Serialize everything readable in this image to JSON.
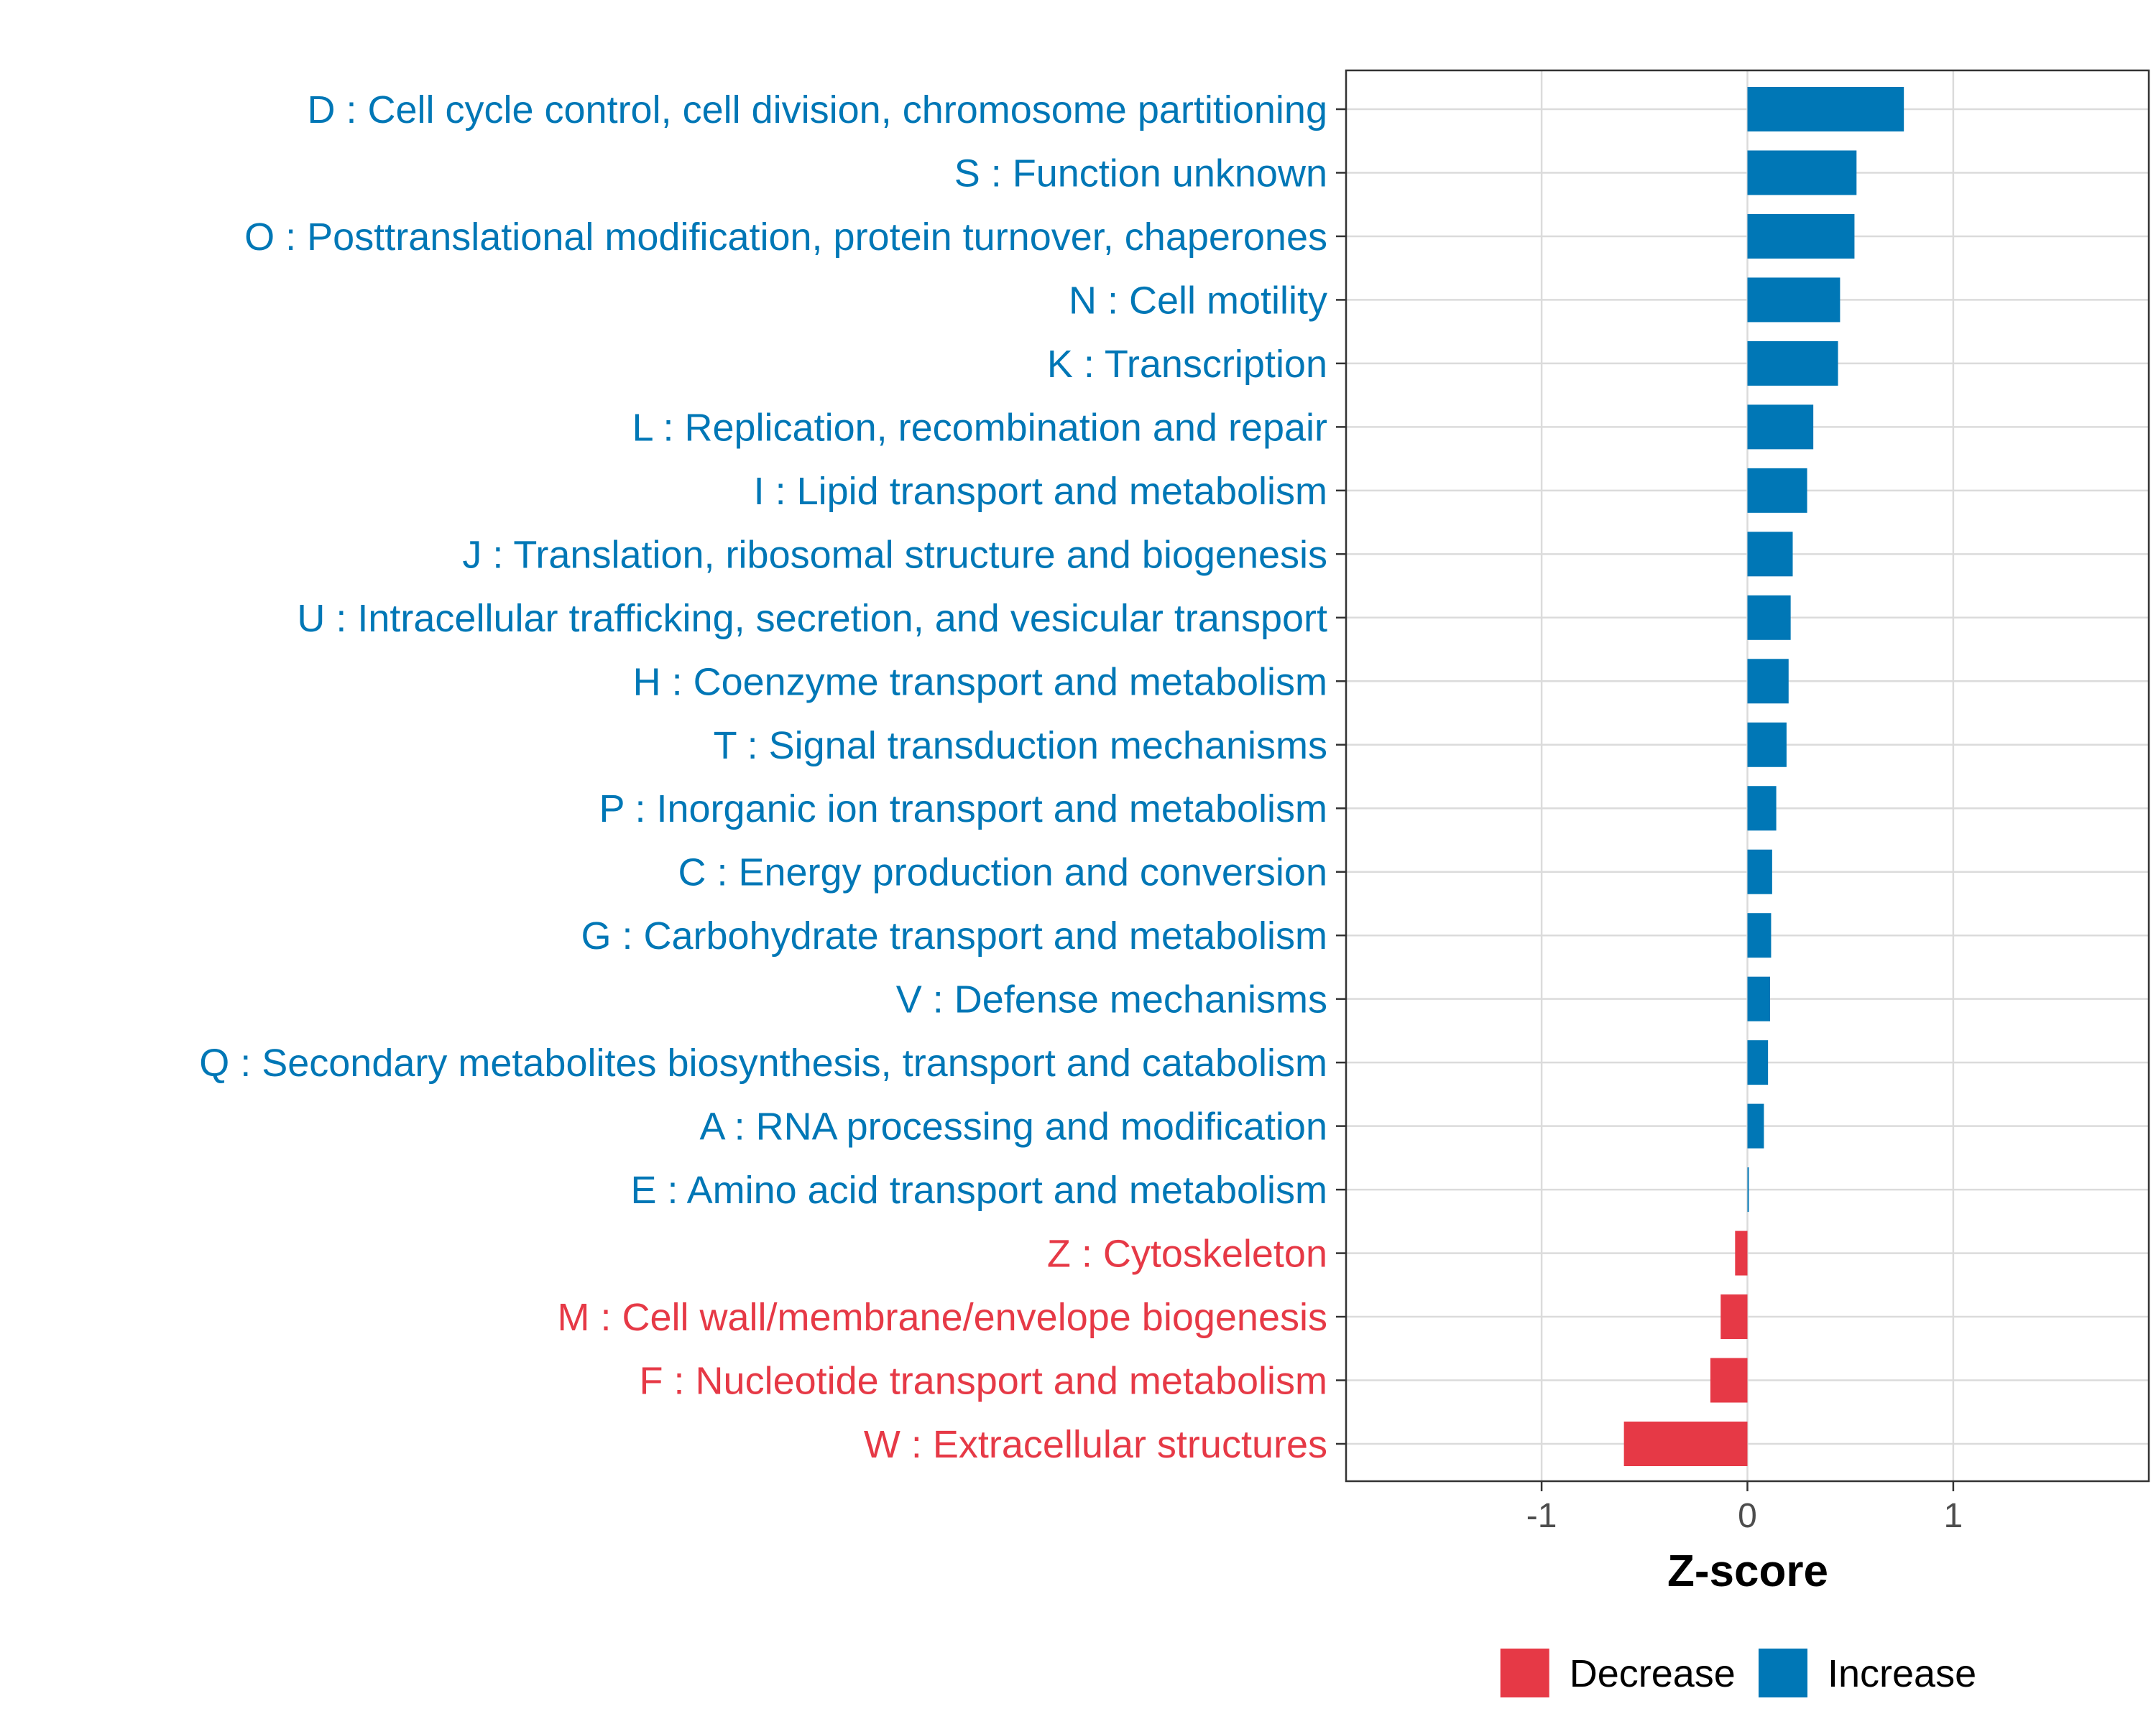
{
  "chart_data": {
    "type": "bar",
    "orientation": "horizontal",
    "title": "",
    "xlabel": "Z-score",
    "ylabel": "",
    "xlim": [
      -1.95,
      1.95
    ],
    "xticks": [
      {
        "value": -1,
        "label": "-1"
      },
      {
        "value": 0,
        "label": "0"
      },
      {
        "value": 1,
        "label": "1"
      }
    ],
    "grid": true,
    "categories": [
      {
        "label": "D : Cell cycle control, cell division, chromosome partitioning",
        "value": 0.76,
        "direction": "Increase"
      },
      {
        "label": "S : Function unknown",
        "value": 0.53,
        "direction": "Increase"
      },
      {
        "label": "O : Posttranslational modification, protein turnover, chaperones",
        "value": 0.52,
        "direction": "Increase"
      },
      {
        "label": "N : Cell motility",
        "value": 0.45,
        "direction": "Increase"
      },
      {
        "label": "K : Transcription",
        "value": 0.44,
        "direction": "Increase"
      },
      {
        "label": "L : Replication, recombination and repair",
        "value": 0.32,
        "direction": "Increase"
      },
      {
        "label": "I : Lipid transport and metabolism",
        "value": 0.29,
        "direction": "Increase"
      },
      {
        "label": "J : Translation, ribosomal structure and biogenesis",
        "value": 0.22,
        "direction": "Increase"
      },
      {
        "label": "U : Intracellular trafficking, secretion, and vesicular transport",
        "value": 0.21,
        "direction": "Increase"
      },
      {
        "label": "H : Coenzyme transport and metabolism",
        "value": 0.2,
        "direction": "Increase"
      },
      {
        "label": "T : Signal transduction mechanisms",
        "value": 0.19,
        "direction": "Increase"
      },
      {
        "label": "P : Inorganic ion transport and metabolism",
        "value": 0.14,
        "direction": "Increase"
      },
      {
        "label": "C : Energy production and conversion",
        "value": 0.12,
        "direction": "Increase"
      },
      {
        "label": "G : Carbohydrate transport and metabolism",
        "value": 0.115,
        "direction": "Increase"
      },
      {
        "label": "V : Defense mechanisms",
        "value": 0.11,
        "direction": "Increase"
      },
      {
        "label": "Q : Secondary metabolites biosynthesis, transport and catabolism",
        "value": 0.1,
        "direction": "Increase"
      },
      {
        "label": "A : RNA processing and modification",
        "value": 0.08,
        "direction": "Increase"
      },
      {
        "label": "E : Amino acid transport and metabolism",
        "value": 0.005,
        "direction": "Increase"
      },
      {
        "label": "Z : Cytoskeleton",
        "value": -0.06,
        "direction": "Decrease"
      },
      {
        "label": "M : Cell wall/membrane/envelope biogenesis",
        "value": -0.13,
        "direction": "Decrease"
      },
      {
        "label": "F : Nucleotide transport and metabolism",
        "value": -0.18,
        "direction": "Decrease"
      },
      {
        "label": "W : Extracellular structures",
        "value": -0.6,
        "direction": "Decrease"
      }
    ],
    "legend": {
      "placement": "bottom",
      "entries": [
        {
          "name": "Decrease",
          "color": "#E63946"
        },
        {
          "name": "Increase",
          "color": "#0077B6"
        }
      ]
    },
    "colors": {
      "Increase": "#0077B6",
      "Decrease": "#E63946",
      "grid": "#DBDBDB",
      "panel_border": "#333333",
      "tick_text": "#4d4d4d"
    }
  }
}
